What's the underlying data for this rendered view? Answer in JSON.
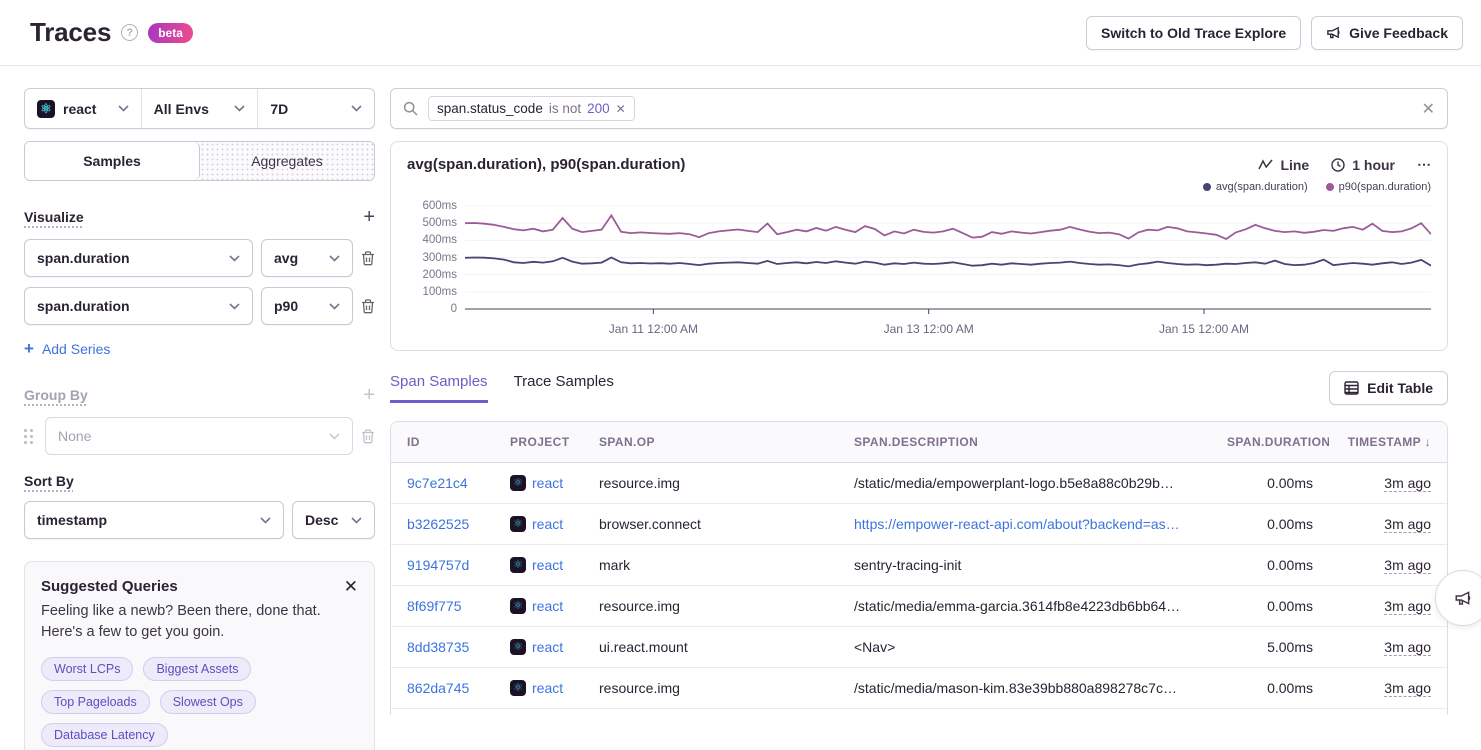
{
  "colors": {
    "accent_purple": "#6c5fc7",
    "link_blue": "#3c74dd",
    "beta_gradient": [
      "#a737c1",
      "#ee4b8d"
    ]
  },
  "header": {
    "title": "Traces",
    "beta_label": "beta",
    "switch_button": "Switch to Old Trace Explore",
    "feedback_button": "Give Feedback"
  },
  "filters": {
    "project": "react",
    "environment": "All Envs",
    "period": "7D",
    "token": {
      "key": "span.status_code",
      "operator": "is not",
      "value": "200"
    }
  },
  "sidebar": {
    "tabs": {
      "samples": "Samples",
      "aggregates": "Aggregates"
    },
    "visualize": {
      "heading": "Visualize",
      "rows": [
        {
          "field": "span.duration",
          "aggregate": "avg"
        },
        {
          "field": "span.duration",
          "aggregate": "p90"
        }
      ],
      "add_series": "Add Series"
    },
    "group_by": {
      "heading": "Group By",
      "placeholder": "None"
    },
    "sort_by": {
      "heading": "Sort By",
      "field": "timestamp",
      "direction": "Desc"
    },
    "suggested": {
      "title": "Suggested Queries",
      "line1": "Feeling like a newb? Been there, done that.",
      "line2": "Here's a few to get you goin.",
      "chips": [
        "Worst LCPs",
        "Biggest Assets",
        "Top Pageloads",
        "Slowest Ops",
        "Database Latency"
      ]
    }
  },
  "chart": {
    "title": "avg(span.duration), p90(span.duration)",
    "type_label": "Line",
    "interval_label": "1 hour",
    "menu_label": "⋯"
  },
  "chart_data": {
    "type": "line",
    "title": "avg(span.duration), p90(span.duration)",
    "unit": "ms",
    "ylim": [
      0,
      600
    ],
    "y_ticks": [
      {
        "label": "0",
        "value": 0
      },
      {
        "label": "100ms",
        "value": 100
      },
      {
        "label": "200ms",
        "value": 200
      },
      {
        "label": "300ms",
        "value": 300
      },
      {
        "label": "400ms",
        "value": 400
      },
      {
        "label": "500ms",
        "value": 500
      },
      {
        "label": "600ms",
        "value": 600
      }
    ],
    "x_ticks": [
      {
        "label": "Jan 11 12:00 AM",
        "pos": 0.195
      },
      {
        "label": "Jan 13 12:00 AM",
        "pos": 0.48
      },
      {
        "label": "Jan 15 12:00 AM",
        "pos": 0.765
      }
    ],
    "legend_position": "top-right",
    "grid": false,
    "series": [
      {
        "name": "avg(span.duration)",
        "color": "#444674",
        "values": [
          298,
          300,
          299,
          295,
          288,
          272,
          268,
          275,
          270,
          278,
          298,
          276,
          264,
          266,
          270,
          300,
          272,
          266,
          268,
          265,
          267,
          264,
          268,
          262,
          256,
          264,
          268,
          270,
          272,
          268,
          264,
          280,
          262,
          268,
          272,
          266,
          274,
          268,
          278,
          270,
          264,
          276,
          270,
          258,
          266,
          262,
          270,
          264,
          262,
          266,
          272,
          262,
          252,
          255,
          264,
          258,
          266,
          262,
          258,
          264,
          268,
          270,
          276,
          268,
          262,
          258,
          260,
          256,
          248,
          260,
          266,
          276,
          268,
          262,
          258,
          260,
          255,
          258,
          264,
          262,
          268,
          272,
          264,
          282,
          262,
          256,
          258,
          268,
          288,
          255,
          262,
          268,
          264,
          258,
          266,
          272,
          262,
          270,
          286,
          252
        ]
      },
      {
        "name": "p90(span.duration)",
        "color": "#9c5b98",
        "values": [
          500,
          501,
          497,
          490,
          478,
          465,
          458,
          468,
          452,
          462,
          530,
          468,
          448,
          455,
          462,
          545,
          450,
          442,
          446,
          443,
          440,
          438,
          442,
          436,
          418,
          442,
          452,
          458,
          463,
          455,
          448,
          498,
          436,
          448,
          462,
          452,
          472,
          456,
          478,
          462,
          448,
          483,
          466,
          428,
          452,
          440,
          462,
          449,
          445,
          452,
          468,
          442,
          416,
          421,
          448,
          438,
          452,
          445,
          440,
          448,
          456,
          462,
          478,
          463,
          450,
          442,
          445,
          436,
          410,
          446,
          462,
          458,
          478,
          470,
          452,
          446,
          440,
          432,
          408,
          446,
          464,
          490,
          470,
          455,
          448,
          452,
          444,
          450,
          460,
          455,
          470,
          478,
          462,
          497,
          455,
          448,
          452,
          470,
          500,
          436
        ]
      }
    ]
  },
  "samples": {
    "tabs": {
      "span": "Span Samples",
      "trace": "Trace Samples"
    },
    "edit_table": "Edit Table",
    "columns": [
      "ID",
      "PROJECT",
      "SPAN.OP",
      "SPAN.DESCRIPTION",
      "SPAN.DURATION",
      "TIMESTAMP"
    ],
    "sort_arrow": "↓",
    "rows": [
      {
        "id": "9c7e21c4",
        "project": "react",
        "op": "resource.img",
        "desc": "/static/media/empowerplant-logo.b5e8a88c0b29b…",
        "duration": "0.00ms",
        "timestamp": "3m ago"
      },
      {
        "id": "b3262525",
        "project": "react",
        "op": "browser.connect",
        "desc": "https://empower-react-api.com/about?backend=as…",
        "duration": "0.00ms",
        "timestamp": "3m ago"
      },
      {
        "id": "9194757d",
        "project": "react",
        "op": "mark",
        "desc": "sentry-tracing-init",
        "duration": "0.00ms",
        "timestamp": "3m ago"
      },
      {
        "id": "8f69f775",
        "project": "react",
        "op": "resource.img",
        "desc": "/static/media/emma-garcia.3614fb8e4223db6bb64…",
        "duration": "0.00ms",
        "timestamp": "3m ago"
      },
      {
        "id": "8dd38735",
        "project": "react",
        "op": "ui.react.mount",
        "desc": "<Nav>",
        "duration": "5.00ms",
        "timestamp": "3m ago"
      },
      {
        "id": "862da745",
        "project": "react",
        "op": "resource.img",
        "desc": "/static/media/mason-kim.83e39bb880a898278c7c…",
        "duration": "0.00ms",
        "timestamp": "3m ago"
      }
    ]
  }
}
